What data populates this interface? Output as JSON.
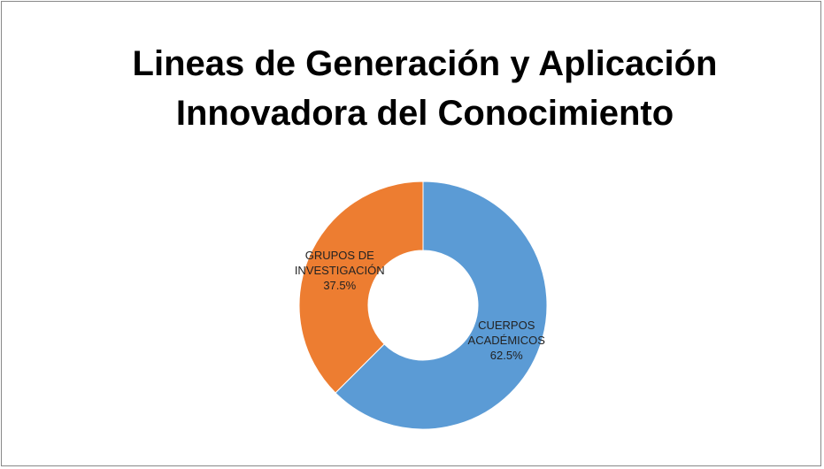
{
  "chart_data": {
    "type": "donut",
    "title": "Lineas de Generación y Aplicación Innovadora del Conocimiento",
    "categories": [
      "CUERPOS ACADÉMICOS",
      "GRUPOS DE INVESTIGACIÓN"
    ],
    "values": [
      62.5,
      37.5
    ],
    "value_labels": [
      "62.5%",
      "37.5%"
    ],
    "colors": [
      "#5b9bd5",
      "#ed7d31"
    ]
  }
}
